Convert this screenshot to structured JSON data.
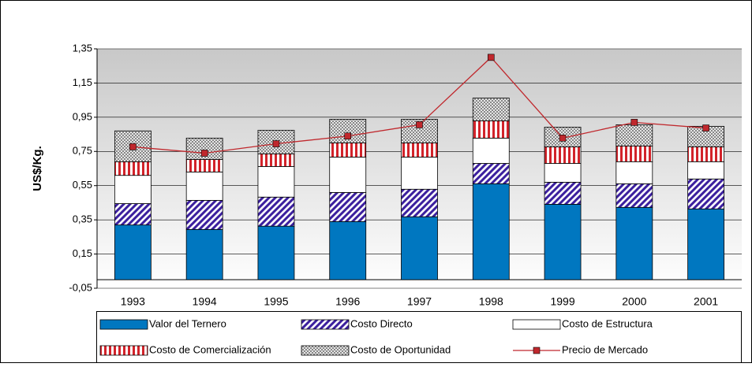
{
  "chart_data": {
    "type": "bar",
    "y_label": "US$/Kg.",
    "categories": [
      "1993",
      "1994",
      "1995",
      "1996",
      "1997",
      "1998",
      "1999",
      "2000",
      "2001"
    ],
    "ylim": [
      -0.05,
      1.35
    ],
    "yticks": [
      {
        "value": -0.05,
        "label": "-0,05"
      },
      {
        "value": 0.15,
        "label": "0,15"
      },
      {
        "value": 0.35,
        "label": "0,35"
      },
      {
        "value": 0.55,
        "label": "0,55"
      },
      {
        "value": 0.75,
        "label": "0,75"
      },
      {
        "value": 0.95,
        "label": "0,95"
      },
      {
        "value": 1.15,
        "label": "1,15"
      },
      {
        "value": 1.35,
        "label": "1,35"
      }
    ],
    "grid": true,
    "stacked": true,
    "series": [
      {
        "name": "Valor del Ternero",
        "color": "#0077c0",
        "pattern": "solid",
        "values": [
          0.32,
          0.294,
          0.313,
          0.34,
          0.368,
          0.561,
          0.441,
          0.423,
          0.414
        ]
      },
      {
        "name": "Costo Directo",
        "color": "#3b1f9e",
        "pattern": "diagonal",
        "values": [
          0.125,
          0.17,
          0.17,
          0.17,
          0.161,
          0.119,
          0.129,
          0.138,
          0.175
        ]
      },
      {
        "name": "Costo de Estructura",
        "color": "#ffffff",
        "pattern": "solid",
        "values": [
          0.165,
          0.166,
          0.179,
          0.207,
          0.188,
          0.148,
          0.11,
          0.129,
          0.101
        ]
      },
      {
        "name": "Costo de Comercialización",
        "color": "#d2232a",
        "pattern": "vertical",
        "values": [
          0.08,
          0.073,
          0.074,
          0.083,
          0.083,
          0.101,
          0.097,
          0.092,
          0.087
        ]
      },
      {
        "name": "Costo de Oportunidad",
        "color": "#707070",
        "pattern": "crosshatch",
        "values": [
          0.18,
          0.125,
          0.138,
          0.138,
          0.138,
          0.133,
          0.115,
          0.124,
          0.12
        ]
      },
      {
        "name": "Precio de Mercado",
        "color": "#c0282d",
        "type": "line",
        "values": [
          0.777,
          0.74,
          0.795,
          0.84,
          0.906,
          1.3,
          0.828,
          0.92,
          0.887
        ]
      }
    ]
  }
}
